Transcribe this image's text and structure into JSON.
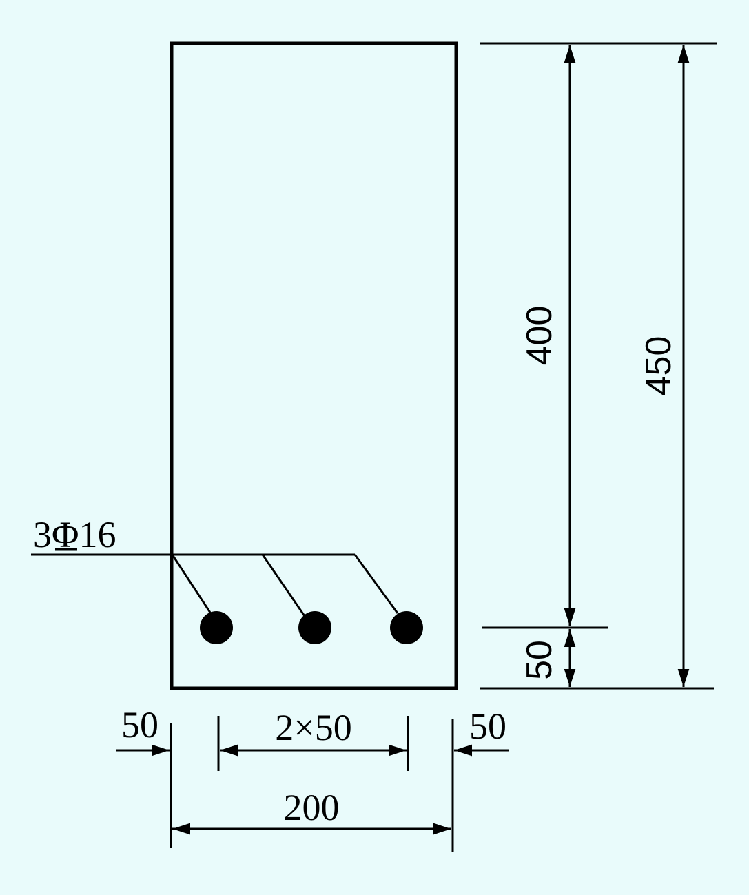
{
  "colors": {
    "background": "#E9FBFB",
    "ink": "#000000"
  },
  "rebar_label": {
    "count": "3",
    "grade_symbol": "Φ",
    "diameter": "16"
  },
  "dimensions": {
    "effective_depth": "400",
    "total_depth": "450",
    "cover_bottom": "50",
    "cover_left": "50",
    "cover_right": "50",
    "bar_spacing": "2×50",
    "width": "200"
  },
  "bars": [
    {
      "id": 1
    },
    {
      "id": 2
    },
    {
      "id": 3
    }
  ]
}
